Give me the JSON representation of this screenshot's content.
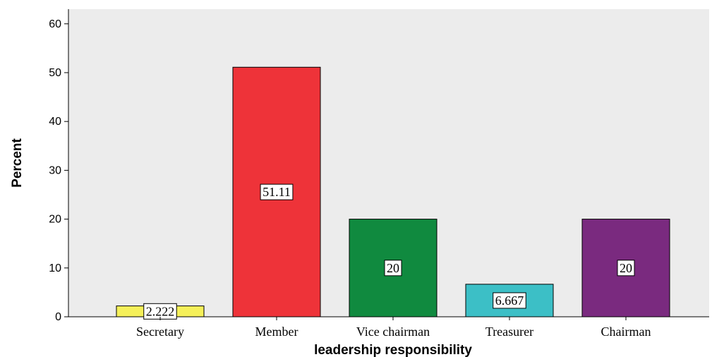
{
  "chart_data": {
    "type": "bar",
    "categories": [
      "Secretary",
      "Member",
      "Vice chairman",
      "Treasurer",
      "Chairman"
    ],
    "values": [
      2.222,
      51.11,
      20,
      6.667,
      20
    ],
    "data_labels": [
      "2.222",
      "51.11",
      "20",
      "6.667",
      "20"
    ],
    "colors": [
      "#f5f05a",
      "#ee3339",
      "#108a3f",
      "#3cbfc6",
      "#7a2a7f"
    ],
    "xlabel": "leadership responsibility",
    "ylabel": "Percent",
    "ylim": [
      0,
      63
    ],
    "yticks": [
      0,
      10,
      20,
      30,
      40,
      50,
      60
    ],
    "plot_background": "#ececec",
    "grid": false,
    "legend": "none"
  }
}
